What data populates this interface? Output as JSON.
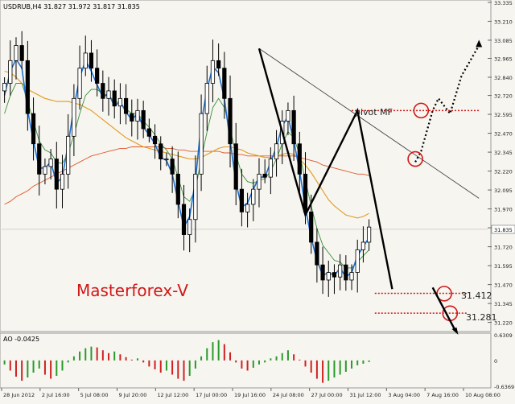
{
  "header": {
    "symbol_line": "USDRUB,H4  31.827 31.972 31.817 31.835"
  },
  "watermark": "Masterforex-V",
  "colors": {
    "background": "#f6f5f0",
    "candles": "#000000",
    "ma_fast": "#1f6fd0",
    "ma_mid": "#3a8f3a",
    "ma_slow": "#e39a1b",
    "ma_long": "#e2552a",
    "annotation_red": "#d01818",
    "ao_up": "#2a9a2a",
    "ao_down": "#d02020",
    "watermark": "#d01818"
  },
  "chart_data": [
    {
      "type": "candlestick",
      "panel": "price",
      "symbol": "USDRUB",
      "timeframe": "H4",
      "ohlc_header": {
        "open": 31.827,
        "high": 31.972,
        "low": 31.817,
        "close": 31.835
      },
      "current_price": 31.835,
      "ylim": [
        31.17,
        33.34
      ],
      "y_ticks": [
        "33.335",
        "33.210",
        "33.085",
        "32.965",
        "32.840",
        "32.720",
        "32.595",
        "32.470",
        "32.345",
        "32.220",
        "32.095",
        "31.970",
        "31.845",
        "31.720",
        "31.595",
        "31.470",
        "31.345",
        "31.220"
      ],
      "x_tick_labels": [
        "28 Jun 2012",
        "2 Jul 16:00",
        "5 Jul 08:00",
        "9 Jul 20:00",
        "12 Jul 12:00",
        "17 Jul 00:00",
        "19 Jul 16:00",
        "24 Jul 08:00",
        "27 Jul 00:00",
        "31 Jul 12:00",
        "3 Aug 04:00",
        "7 Aug 16:00",
        "10 Aug 08:00"
      ],
      "close_path": [
        32.8,
        32.95,
        33.05,
        32.95,
        32.6,
        32.4,
        32.2,
        32.25,
        32.3,
        32.1,
        32.2,
        32.45,
        32.7,
        32.9,
        33.0,
        32.9,
        32.8,
        32.7,
        32.75,
        32.65,
        32.7,
        32.6,
        32.55,
        32.62,
        32.5,
        32.45,
        32.4,
        32.3,
        32.3,
        32.2,
        32.0,
        31.8,
        31.9,
        32.2,
        32.6,
        32.8,
        32.95,
        32.9,
        32.7,
        32.4,
        32.1,
        31.95,
        32.0,
        32.1,
        32.2,
        32.18,
        32.3,
        32.4,
        32.55,
        32.62,
        32.4,
        32.2,
        31.95,
        31.75,
        31.6,
        31.5,
        31.55,
        31.52,
        31.6,
        31.5,
        31.55,
        31.7,
        31.75,
        31.85
      ],
      "ma_fast_path": [
        32.72,
        32.88,
        32.96,
        32.9,
        32.62,
        32.42,
        32.24,
        32.24,
        32.28,
        32.14,
        32.18,
        32.4,
        32.64,
        32.84,
        32.95,
        32.88,
        32.79,
        32.71,
        32.73,
        32.65,
        32.68,
        32.61,
        32.56,
        32.6,
        32.51,
        32.46,
        32.4,
        32.31,
        32.29,
        32.2,
        32.02,
        31.85,
        31.92,
        32.16,
        32.54,
        32.76,
        32.91,
        32.87,
        32.7,
        32.42,
        32.14,
        31.98,
        32.01,
        32.1,
        32.18,
        32.18,
        32.28,
        32.38,
        32.52,
        32.58,
        32.42,
        32.22,
        31.98,
        31.78,
        31.63,
        31.53,
        31.55,
        31.53,
        31.58,
        31.52,
        31.55,
        31.66,
        31.72,
        31.78
      ],
      "ma_mid_path": [
        32.6,
        32.72,
        32.8,
        32.8,
        32.68,
        32.55,
        32.42,
        32.36,
        32.34,
        32.28,
        32.27,
        32.34,
        32.46,
        32.6,
        32.72,
        32.76,
        32.76,
        32.73,
        32.72,
        32.68,
        32.67,
        32.63,
        32.6,
        32.6,
        32.55,
        32.51,
        32.46,
        32.4,
        32.36,
        32.3,
        32.18,
        32.05,
        32.02,
        32.1,
        32.3,
        32.48,
        32.64,
        32.7,
        32.64,
        32.5,
        32.33,
        32.2,
        32.15,
        32.14,
        32.16,
        32.17,
        32.22,
        32.3,
        32.4,
        32.48,
        32.44,
        32.33,
        32.16,
        31.99,
        31.84,
        31.73,
        31.68,
        31.63,
        31.62,
        31.58,
        31.58,
        31.62,
        31.66,
        31.7
      ],
      "ma_slow_path": [
        32.88,
        32.87,
        32.84,
        32.8,
        32.76,
        32.74,
        32.72,
        32.7,
        32.69,
        32.68,
        32.68,
        32.68,
        32.67,
        32.66,
        32.64,
        32.62,
        32.59,
        32.56,
        32.53,
        32.5,
        32.47,
        32.44,
        32.42,
        32.4,
        32.38,
        32.37,
        32.36,
        32.35,
        32.34,
        32.33,
        32.32,
        32.31,
        32.3,
        32.3,
        32.31,
        32.33,
        32.35,
        32.37,
        32.38,
        32.38,
        32.37,
        32.36,
        32.34,
        32.33,
        32.32,
        32.31,
        32.31,
        32.32,
        32.33,
        32.34,
        32.33,
        32.3,
        32.26,
        32.21,
        32.15,
        32.09,
        32.03,
        31.99,
        31.96,
        31.93,
        31.92,
        31.91,
        31.92,
        31.94
      ],
      "ma_long_path": [
        32.0,
        32.02,
        32.05,
        32.07,
        32.09,
        32.12,
        32.14,
        32.16,
        32.18,
        32.2,
        32.22,
        32.24,
        32.26,
        32.28,
        32.3,
        32.32,
        32.33,
        32.34,
        32.35,
        32.36,
        32.37,
        32.37,
        32.38,
        32.38,
        32.38,
        32.38,
        32.38,
        32.38,
        32.37,
        32.37,
        32.36,
        32.36,
        32.35,
        32.35,
        32.35,
        32.35,
        32.35,
        32.35,
        32.34,
        32.34,
        32.33,
        32.33,
        32.32,
        32.32,
        32.32,
        32.32,
        32.32,
        32.32,
        32.32,
        32.32,
        32.32,
        32.31,
        32.3,
        32.29,
        32.28,
        32.26,
        32.25,
        32.24,
        32.23,
        32.22,
        32.21,
        32.2,
        32.2,
        32.19
      ],
      "zigzag": [
        [
          44,
          33.03
        ],
        [
          52,
          31.93
        ],
        [
          61,
          32.62
        ],
        [
          67,
          31.44
        ]
      ],
      "trendline": [
        [
          44,
          33.03
        ],
        [
          82,
          32.04
        ]
      ],
      "projection_path": [
        [
          71,
          32.28
        ],
        [
          72,
          32.35
        ],
        [
          74,
          32.62
        ],
        [
          75,
          32.7
        ],
        [
          77,
          32.6
        ],
        [
          79,
          32.85
        ],
        [
          82,
          33.05
        ]
      ],
      "levels": [
        {
          "label": "pivot MF",
          "value": 32.62,
          "x_start": 60,
          "x_end": 82
        },
        {
          "label": "31.412",
          "value": 31.412,
          "x_start": 64,
          "x_end": 80
        },
        {
          "label": "31.281",
          "value": 31.281,
          "x_start": 64,
          "x_end": 80
        }
      ],
      "level_labels": {
        "pivot": "pivot MF",
        "support1": "31.412",
        "support2": "31.281"
      },
      "circles": [
        [
          71,
          32.3
        ],
        [
          72,
          32.62
        ],
        [
          76,
          31.41
        ],
        [
          77,
          31.28
        ]
      ],
      "down_arrow": [
        [
          74,
          31.45
        ],
        [
          78,
          31.16
        ]
      ]
    },
    {
      "type": "bar",
      "panel": "indicator",
      "indicator": "AO",
      "label": "AO -0.0425",
      "current_value": -0.0425,
      "y_ticks": [
        "0.6309",
        "0",
        "-0.6369"
      ],
      "ylim": [
        -0.6369,
        0.6309
      ],
      "values": [
        -0.1,
        -0.25,
        -0.4,
        -0.5,
        -0.42,
        -0.3,
        -0.2,
        -0.35,
        -0.45,
        -0.38,
        -0.25,
        -0.05,
        0.1,
        0.22,
        0.3,
        0.34,
        0.32,
        0.25,
        0.18,
        0.22,
        0.15,
        0.08,
        0.02,
        0.05,
        -0.05,
        -0.15,
        -0.22,
        -0.3,
        -0.25,
        -0.35,
        -0.45,
        -0.5,
        -0.38,
        -0.2,
        0.1,
        0.3,
        0.45,
        0.5,
        0.4,
        0.2,
        -0.05,
        -0.2,
        -0.25,
        -0.18,
        -0.1,
        -0.05,
        0.05,
        0.1,
        0.18,
        0.25,
        0.15,
        0.02,
        -0.15,
        -0.3,
        -0.45,
        -0.55,
        -0.5,
        -0.42,
        -0.35,
        -0.28,
        -0.2,
        -0.12,
        -0.08,
        -0.04
      ]
    }
  ]
}
